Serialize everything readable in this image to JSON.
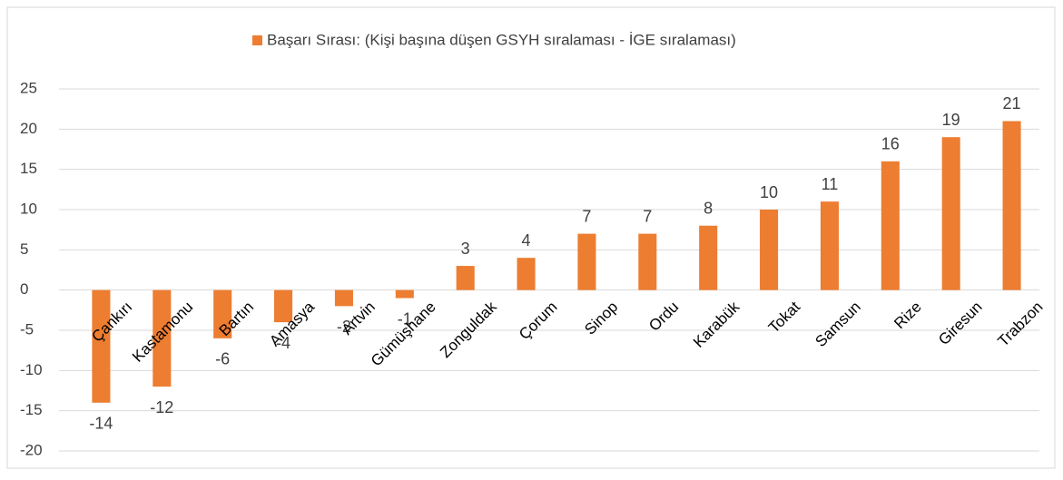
{
  "chart_data": {
    "type": "bar",
    "categories": [
      "Çankırı",
      "Kastamonu",
      "Bartın",
      "Amasya",
      "Artvin",
      "Gümüşhane",
      "Zonguldak",
      "Çorum",
      "Sinop",
      "Ordu",
      "Karabük",
      "Tokat",
      "Samsun",
      "Rize",
      "Giresun",
      "Trabzon"
    ],
    "series": [
      {
        "name": "Başarı Sırası: (Kişi başına düşen GSYH sıralaması - İGE sıralaması)",
        "color": "#ed7d31",
        "values": [
          -14,
          -12,
          -6,
          -4,
          -2,
          -1,
          3,
          4,
          7,
          7,
          8,
          10,
          11,
          16,
          19,
          21
        ]
      }
    ],
    "ylim": [
      -20,
      25
    ],
    "yticks": [
      -20,
      -15,
      -10,
      -5,
      0,
      5,
      10,
      15,
      20,
      25
    ],
    "grid": true,
    "legend": "top"
  }
}
